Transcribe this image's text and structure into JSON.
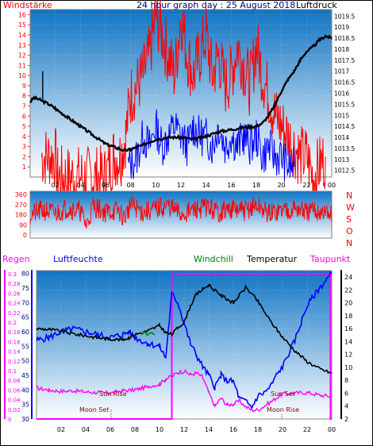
{
  "title": "24 hour graph day : 25 August 2018",
  "labels": {
    "windstaerke": "Windstärke",
    "luftdruck": "Luftdruck",
    "regen": "Regen",
    "luftfeuchte": "Luftfeuchte",
    "windchill": "Windchill",
    "temperatur": "Temperatur",
    "taupunkt": "Taupunkt",
    "compass": [
      "N",
      "W",
      "S",
      "O",
      "N"
    ],
    "moon_set_1": "Moon Set",
    "sun_rise": "Sun Rise",
    "sun_set": "Sun Set",
    "moon_rise": "Moon Rise"
  },
  "colors": {
    "background_top": "#0f74c4",
    "background_bottom": "#ffffff",
    "wind_speed": "#ff0000",
    "gust": "#0000ff",
    "pressure": "#000000",
    "humidity": "#0000ff",
    "temperature": "#000000",
    "windchill": "#008000",
    "dewpoint": "#ff00ff",
    "rain": "#ff00ff"
  },
  "chart_data": [
    {
      "type": "line",
      "panel": "wind-pressure",
      "x_ticks": [
        "02",
        "04",
        "06",
        "08",
        "10",
        "12",
        "14",
        "16",
        "18",
        "20",
        "22",
        "00"
      ],
      "y_left_ticks": [
        1,
        2,
        3,
        4,
        5,
        6,
        7,
        8,
        9,
        10,
        11,
        12,
        13,
        14,
        15,
        16
      ],
      "y_left_range": [
        0,
        16.5
      ],
      "y_right_ticks": [
        "1019.5",
        "1019",
        "1018.5",
        "1018",
        "1017.5",
        "1017",
        "1016.5",
        "1016",
        "1015.5",
        "1015",
        "1014.5",
        "1014",
        "1013.5",
        "1013",
        "1012.5"
      ],
      "y_right_range": [
        1012.2,
        1019.8
      ],
      "pressure": {
        "x": [
          0,
          0.3,
          0.8,
          1.5,
          2,
          3,
          4,
          5,
          6,
          6.5,
          7,
          7.5,
          8,
          8.5,
          9,
          9.5,
          10,
          11,
          12,
          12.5,
          13,
          14,
          15,
          16,
          17,
          18,
          18.5,
          19,
          19.5,
          20,
          20.5,
          21,
          21.5,
          22,
          22.5,
          23,
          23.5,
          24
        ],
        "y": [
          1015.6,
          1015.8,
          1015.7,
          1015.5,
          1015.3,
          1014.9,
          1014.5,
          1014.1,
          1013.7,
          1013.6,
          1013.5,
          1013.4,
          1013.45,
          1013.55,
          1013.65,
          1013.8,
          1013.9,
          1014.0,
          1014.0,
          1013.95,
          1013.9,
          1014.05,
          1014.25,
          1014.35,
          1014.45,
          1014.5,
          1014.65,
          1015.0,
          1015.5,
          1016.1,
          1016.6,
          1017.0,
          1017.5,
          1017.9,
          1018.1,
          1018.4,
          1018.6,
          1018.5
        ]
      },
      "pressure_spike": {
        "x": 1.0,
        "y": 1017.0
      },
      "wind_speed": {
        "x": [
          0.9,
          2.0,
          2.2,
          6.0,
          6.6,
          7.2,
          7.6,
          8.0,
          8.5,
          9,
          9.5,
          10,
          10.5,
          11,
          11.5,
          12,
          12.5,
          13,
          13.5,
          14,
          14.5,
          15,
          15.5,
          16,
          16.5,
          17,
          17.5,
          18,
          18.5,
          19,
          19.5,
          20,
          20.5,
          21,
          21.5,
          22,
          22.5,
          23.5
        ],
        "y": [
          2,
          2,
          0,
          0,
          2,
          2,
          4,
          8,
          9,
          10,
          12,
          16,
          14,
          12,
          10,
          16,
          12,
          10,
          12,
          14,
          10,
          12,
          9,
          10,
          13,
          11,
          9,
          13,
          10,
          8,
          6,
          5,
          4,
          3,
          2,
          2,
          0,
          2
        ]
      },
      "gust": {
        "x": [
          7.8,
          8.5,
          9,
          9.5,
          10,
          10.5,
          11,
          11.5,
          12,
          12.5,
          13,
          13.5,
          14,
          14.5,
          15,
          15.5,
          16,
          16.5,
          17,
          17.5,
          18,
          18.5,
          19,
          19.5,
          20,
          20.5,
          21
        ],
        "y": [
          1,
          2,
          4,
          3,
          5,
          3,
          4,
          5,
          4,
          3,
          5,
          4,
          4,
          3,
          5,
          3,
          4,
          3,
          4,
          3,
          4,
          2,
          3,
          2,
          2,
          1,
          1
        ]
      }
    },
    {
      "type": "line",
      "panel": "wind-direction",
      "y_ticks": [
        "360",
        "270",
        "180",
        "90",
        "0"
      ],
      "y_range": [
        0,
        360
      ],
      "direction": {
        "x": [
          0,
          0.5,
          1,
          2,
          3,
          4,
          4.5,
          5,
          6,
          7,
          7.5,
          8,
          9,
          10,
          11,
          12,
          13,
          14,
          15,
          16,
          17,
          18,
          19,
          20,
          21,
          22,
          23,
          23.5,
          24
        ],
        "y": [
          180,
          200,
          220,
          190,
          240,
          210,
          80,
          260,
          200,
          220,
          150,
          270,
          200,
          230,
          260,
          180,
          220,
          250,
          200,
          230,
          210,
          260,
          190,
          220,
          240,
          200,
          210,
          190,
          180
        ]
      }
    },
    {
      "type": "line",
      "panel": "temperature-humidity-rain",
      "x_ticks": [
        "02",
        "04",
        "06",
        "08",
        "10",
        "12",
        "14",
        "16",
        "18",
        "20",
        "22",
        "00"
      ],
      "y_rain_ticks": [
        "0.3",
        "0.28",
        "0.26",
        "0.24",
        "0.22",
        "0.2",
        "0.18",
        "0.16",
        "0.14",
        "0.12",
        "0.1",
        "0.08",
        "0.06",
        "0.04",
        "0.02",
        "0"
      ],
      "y_rain_range": [
        0,
        0.3
      ],
      "y_humidity_ticks": [
        "80",
        "75",
        "70",
        "65",
        "60",
        "55",
        "50",
        "45",
        "40",
        "35",
        "30"
      ],
      "y_humidity_range": [
        30,
        81
      ],
      "y_temp_ticks": [
        "24",
        "22",
        "20",
        "18",
        "16",
        "14",
        "12",
        "10",
        "8",
        "6",
        "4",
        "2"
      ],
      "y_temp_range": [
        2,
        25
      ],
      "temperature": {
        "x": [
          0,
          1,
          2,
          3,
          4,
          5,
          6,
          7,
          7.5,
          8,
          9,
          10,
          10.5,
          11,
          11.5,
          12,
          12.5,
          13,
          13.5,
          14,
          14.5,
          15,
          15.5,
          16,
          16.5,
          17,
          17.5,
          18,
          18.5,
          19,
          20,
          21,
          22,
          23,
          24
        ],
        "y": [
          16.0,
          15.9,
          15.6,
          15.2,
          14.9,
          14.6,
          14.4,
          14.3,
          14.6,
          15.1,
          15.6,
          16.5,
          15.4,
          15.1,
          16.2,
          17.0,
          19.5,
          21.3,
          22.1,
          22.8,
          21.9,
          21.2,
          20.6,
          20.0,
          21.2,
          22.4,
          21.4,
          20.2,
          18.7,
          17.2,
          14.7,
          12.6,
          10.9,
          9.8,
          9.1
        ]
      },
      "humidity": {
        "x": [
          0,
          1,
          2,
          3,
          4,
          5,
          6,
          7,
          7.5,
          8,
          9,
          10,
          10.5,
          11,
          11.5,
          12,
          12.5,
          13,
          13.5,
          14,
          14.5,
          15,
          15.5,
          16,
          16.5,
          17,
          17.5,
          18,
          18.5,
          19,
          19.5,
          20,
          21,
          22,
          23,
          24
        ],
        "y": [
          57,
          58,
          60,
          61,
          60,
          59,
          58,
          59,
          60,
          58,
          56,
          55,
          51,
          73,
          70,
          63,
          56,
          52,
          48,
          45,
          41,
          45,
          43,
          43,
          37,
          36,
          34,
          38,
          39,
          41,
          45,
          48,
          57,
          69,
          75,
          80
        ]
      },
      "windchill": {
        "x": [
          8.5,
          8.8,
          9.0,
          9.3,
          9.6
        ],
        "y": [
          15.2,
          15.5,
          15.0,
          15.4,
          15.1
        ]
      },
      "dewpoint": {
        "x": [
          0,
          1,
          2,
          3,
          4,
          5,
          6,
          7,
          8,
          9,
          10,
          10.5,
          11,
          11.5,
          12,
          12.5,
          13,
          13.5,
          14,
          14.5,
          15,
          15.5,
          16,
          16.5,
          17,
          17.5,
          18,
          18.5,
          19,
          20,
          21,
          22,
          23,
          24
        ],
        "y": [
          6.8,
          6.5,
          6.3,
          6.4,
          6.2,
          6.1,
          6.0,
          6.4,
          6.5,
          7.0,
          7.4,
          8.2,
          8.6,
          9.2,
          9.4,
          8.9,
          9.1,
          8.5,
          6.1,
          4.0,
          5.2,
          4.2,
          4.3,
          4.8,
          3.9,
          3.4,
          3.4,
          4.0,
          4.6,
          5.9,
          6.0,
          6.1,
          5.7,
          5.5
        ]
      },
      "rain": {
        "x": [
          0,
          11.0,
          11.0,
          23.9,
          23.9,
          24
        ],
        "y": [
          0,
          0,
          0.3,
          0.3,
          0,
          0
        ]
      }
    }
  ]
}
